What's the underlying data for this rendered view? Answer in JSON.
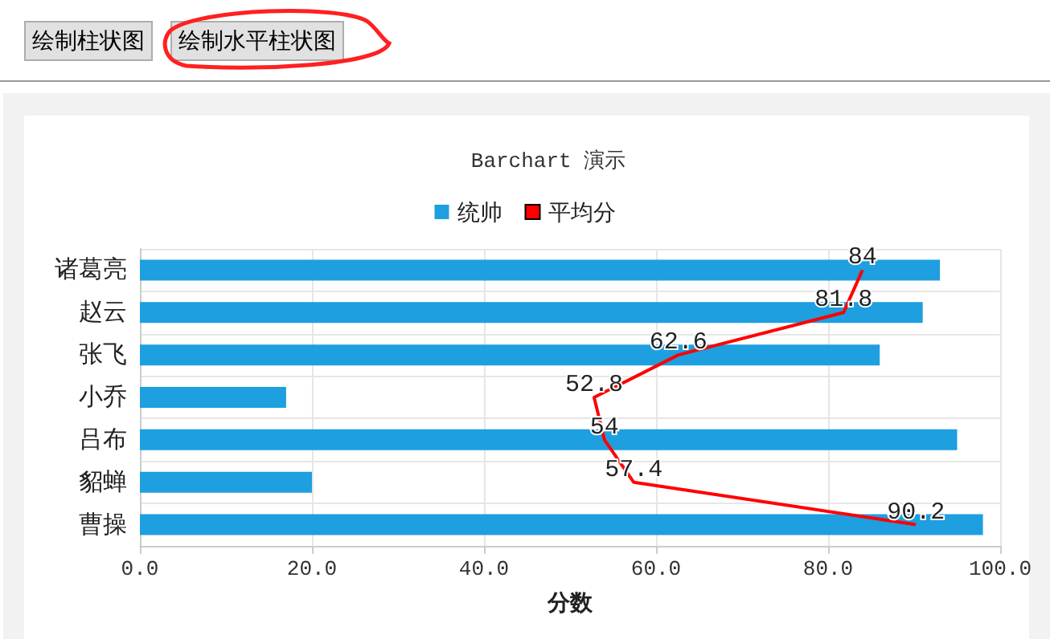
{
  "chart_data": {
    "type": "bar",
    "orientation": "horizontal",
    "title": "Barchart 演示",
    "xlabel": "分数",
    "annotations": [
      "绘制柱状图",
      "绘制水平柱状图"
    ],
    "categories": [
      "诸葛亮",
      "赵云",
      "张飞",
      "小乔",
      "吕布",
      "貂蝉",
      "曹操"
    ],
    "series": [
      {
        "name": "统帅",
        "color": "#1e9fdf",
        "values": [
          93,
          91,
          86,
          17,
          95,
          20,
          98
        ]
      },
      {
        "name": "平均分",
        "type": "line",
        "color": "#ff0000",
        "marker": "none",
        "values": [
          84,
          81.8,
          62.6,
          52.8,
          54,
          57.4,
          90.2
        ],
        "value_labels": [
          "84",
          "81.8",
          "62.6",
          "52.8",
          "54",
          "57.4",
          "90.2"
        ]
      }
    ],
    "xlim": [
      0,
      100
    ],
    "xticks": [
      {
        "value": 0,
        "label": "0.0"
      },
      {
        "value": 20,
        "label": "20.0"
      },
      {
        "value": 40,
        "label": "40.0"
      },
      {
        "value": 60,
        "label": "60.0"
      },
      {
        "value": 80,
        "label": "80.0"
      },
      {
        "value": 100,
        "label": "100.0"
      }
    ],
    "grid": true,
    "legend": "top"
  }
}
